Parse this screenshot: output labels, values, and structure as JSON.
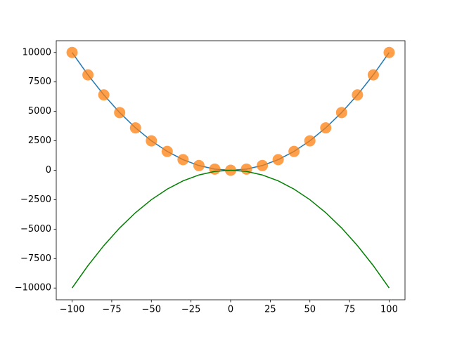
{
  "chart_data": {
    "type": "line",
    "x": [
      -100,
      -90,
      -80,
      -70,
      -60,
      -50,
      -40,
      -30,
      -20,
      -10,
      0,
      10,
      20,
      30,
      40,
      50,
      60,
      70,
      80,
      90,
      100
    ],
    "series": [
      {
        "type": "line",
        "color": "#1f77b4",
        "values": [
          10000,
          8100,
          6400,
          4900,
          3600,
          2500,
          1600,
          900,
          400,
          100,
          0,
          100,
          400,
          900,
          1600,
          2500,
          3600,
          4900,
          6400,
          8100,
          10000
        ]
      },
      {
        "type": "scatter",
        "color": "#ff7f0e",
        "values": [
          10000,
          8100,
          6400,
          4900,
          3600,
          2500,
          1600,
          900,
          400,
          100,
          0,
          100,
          400,
          900,
          1600,
          2500,
          3600,
          4900,
          6400,
          8100,
          10000
        ]
      },
      {
        "type": "line",
        "color": "#008000",
        "values": [
          -10000,
          -8100,
          -6400,
          -4900,
          -3600,
          -2500,
          -1600,
          -900,
          -400,
          -100,
          0,
          -100,
          -400,
          -900,
          -1600,
          -2500,
          -3600,
          -4900,
          -6400,
          -8100,
          -10000
        ]
      }
    ],
    "xlim": [
      -110,
      110
    ],
    "ylim": [
      -11000,
      11000
    ],
    "xticks": [
      {
        "value": -100,
        "label": "−100"
      },
      {
        "value": -75,
        "label": "−75"
      },
      {
        "value": -50,
        "label": "−50"
      },
      {
        "value": -25,
        "label": "−25"
      },
      0,
      25,
      50,
      75,
      100
    ],
    "yticks": [
      {
        "value": -10000,
        "label": "−10000"
      },
      {
        "value": -7500,
        "label": "−7500"
      },
      {
        "value": -5000,
        "label": "−5000"
      },
      {
        "value": -2500,
        "label": "−2500"
      },
      0,
      2500,
      5000,
      7500,
      10000
    ]
  }
}
